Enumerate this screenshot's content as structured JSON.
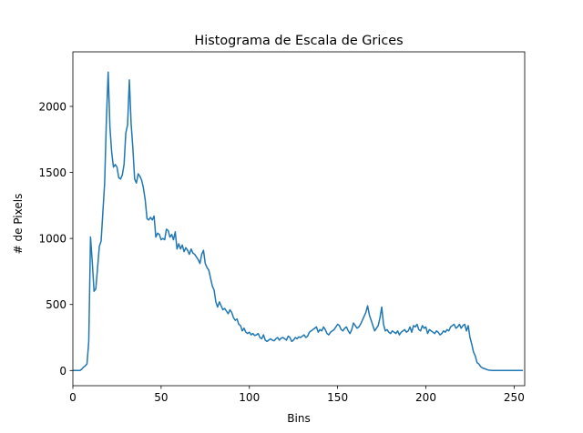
{
  "chart_data": {
    "type": "line",
    "title": "Histograma de Escala de Grices",
    "xlabel": "Bins",
    "ylabel": "# de Pixels",
    "xlim": [
      0,
      256
    ],
    "ylim": [
      -115,
      2413
    ],
    "xticks": [
      0,
      50,
      100,
      150,
      200,
      250
    ],
    "yticks": [
      0,
      500,
      1000,
      1500,
      2000
    ],
    "grid": false,
    "legend": "none",
    "series": [
      {
        "color": "#1f77b4",
        "points": [
          [
            0,
            0
          ],
          [
            1,
            0
          ],
          [
            2,
            0
          ],
          [
            3,
            0
          ],
          [
            4,
            0
          ],
          [
            5,
            10
          ],
          [
            6,
            25
          ],
          [
            7,
            35
          ],
          [
            8,
            50
          ],
          [
            9,
            220
          ],
          [
            10,
            1010
          ],
          [
            11,
            820
          ],
          [
            12,
            600
          ],
          [
            13,
            620
          ],
          [
            14,
            780
          ],
          [
            15,
            940
          ],
          [
            16,
            980
          ],
          [
            17,
            1200
          ],
          [
            18,
            1420
          ],
          [
            19,
            1900
          ],
          [
            20,
            2260
          ],
          [
            21,
            1840
          ],
          [
            22,
            1650
          ],
          [
            23,
            1540
          ],
          [
            24,
            1560
          ],
          [
            25,
            1540
          ],
          [
            26,
            1460
          ],
          [
            27,
            1450
          ],
          [
            28,
            1480
          ],
          [
            29,
            1560
          ],
          [
            30,
            1800
          ],
          [
            31,
            1860
          ],
          [
            32,
            2200
          ],
          [
            33,
            1870
          ],
          [
            34,
            1680
          ],
          [
            35,
            1450
          ],
          [
            36,
            1420
          ],
          [
            37,
            1490
          ],
          [
            38,
            1470
          ],
          [
            39,
            1440
          ],
          [
            40,
            1380
          ],
          [
            41,
            1290
          ],
          [
            42,
            1150
          ],
          [
            43,
            1140
          ],
          [
            44,
            1160
          ],
          [
            45,
            1140
          ],
          [
            46,
            1170
          ],
          [
            47,
            1010
          ],
          [
            48,
            1040
          ],
          [
            49,
            1030
          ],
          [
            50,
            990
          ],
          [
            51,
            1000
          ],
          [
            52,
            990
          ],
          [
            53,
            1070
          ],
          [
            54,
            1060
          ],
          [
            55,
            1010
          ],
          [
            56,
            1030
          ],
          [
            57,
            990
          ],
          [
            58,
            1050
          ],
          [
            59,
            920
          ],
          [
            60,
            960
          ],
          [
            61,
            920
          ],
          [
            62,
            950
          ],
          [
            63,
            900
          ],
          [
            64,
            930
          ],
          [
            65,
            910
          ],
          [
            66,
            880
          ],
          [
            67,
            920
          ],
          [
            68,
            890
          ],
          [
            69,
            880
          ],
          [
            70,
            860
          ],
          [
            71,
            840
          ],
          [
            72,
            810
          ],
          [
            73,
            880
          ],
          [
            74,
            910
          ],
          [
            75,
            810
          ],
          [
            76,
            780
          ],
          [
            77,
            760
          ],
          [
            78,
            700
          ],
          [
            79,
            640
          ],
          [
            80,
            610
          ],
          [
            81,
            520
          ],
          [
            82,
            480
          ],
          [
            83,
            520
          ],
          [
            84,
            490
          ],
          [
            85,
            460
          ],
          [
            86,
            470
          ],
          [
            87,
            450
          ],
          [
            88,
            430
          ],
          [
            89,
            460
          ],
          [
            90,
            440
          ],
          [
            91,
            400
          ],
          [
            92,
            380
          ],
          [
            93,
            390
          ],
          [
            94,
            350
          ],
          [
            95,
            340
          ],
          [
            96,
            300
          ],
          [
            97,
            320
          ],
          [
            98,
            290
          ],
          [
            99,
            280
          ],
          [
            100,
            290
          ],
          [
            101,
            270
          ],
          [
            102,
            280
          ],
          [
            103,
            265
          ],
          [
            104,
            270
          ],
          [
            105,
            280
          ],
          [
            106,
            250
          ],
          [
            107,
            240
          ],
          [
            108,
            270
          ],
          [
            109,
            230
          ],
          [
            110,
            220
          ],
          [
            111,
            230
          ],
          [
            112,
            240
          ],
          [
            113,
            230
          ],
          [
            114,
            225
          ],
          [
            115,
            240
          ],
          [
            116,
            250
          ],
          [
            117,
            230
          ],
          [
            118,
            245
          ],
          [
            119,
            250
          ],
          [
            120,
            240
          ],
          [
            121,
            230
          ],
          [
            122,
            260
          ],
          [
            123,
            250
          ],
          [
            124,
            220
          ],
          [
            125,
            230
          ],
          [
            126,
            250
          ],
          [
            127,
            240
          ],
          [
            128,
            255
          ],
          [
            129,
            250
          ],
          [
            130,
            260
          ],
          [
            131,
            270
          ],
          [
            132,
            250
          ],
          [
            133,
            260
          ],
          [
            134,
            290
          ],
          [
            135,
            300
          ],
          [
            136,
            310
          ],
          [
            137,
            320
          ],
          [
            138,
            330
          ],
          [
            139,
            290
          ],
          [
            140,
            310
          ],
          [
            141,
            300
          ],
          [
            142,
            330
          ],
          [
            143,
            310
          ],
          [
            144,
            280
          ],
          [
            145,
            270
          ],
          [
            146,
            290
          ],
          [
            147,
            300
          ],
          [
            148,
            310
          ],
          [
            149,
            330
          ],
          [
            150,
            350
          ],
          [
            151,
            340
          ],
          [
            152,
            310
          ],
          [
            153,
            300
          ],
          [
            154,
            320
          ],
          [
            155,
            330
          ],
          [
            156,
            300
          ],
          [
            157,
            280
          ],
          [
            158,
            310
          ],
          [
            159,
            360
          ],
          [
            160,
            340
          ],
          [
            161,
            320
          ],
          [
            162,
            330
          ],
          [
            163,
            350
          ],
          [
            164,
            380
          ],
          [
            165,
            410
          ],
          [
            166,
            440
          ],
          [
            167,
            490
          ],
          [
            168,
            420
          ],
          [
            169,
            380
          ],
          [
            170,
            340
          ],
          [
            171,
            300
          ],
          [
            172,
            320
          ],
          [
            173,
            340
          ],
          [
            174,
            400
          ],
          [
            175,
            480
          ],
          [
            176,
            350
          ],
          [
            177,
            300
          ],
          [
            178,
            310
          ],
          [
            179,
            290
          ],
          [
            180,
            280
          ],
          [
            181,
            300
          ],
          [
            182,
            290
          ],
          [
            183,
            280
          ],
          [
            184,
            300
          ],
          [
            185,
            270
          ],
          [
            186,
            290
          ],
          [
            187,
            300
          ],
          [
            188,
            310
          ],
          [
            189,
            290
          ],
          [
            190,
            300
          ],
          [
            191,
            330
          ],
          [
            192,
            290
          ],
          [
            193,
            340
          ],
          [
            194,
            330
          ],
          [
            195,
            350
          ],
          [
            196,
            310
          ],
          [
            197,
            300
          ],
          [
            198,
            340
          ],
          [
            199,
            320
          ],
          [
            200,
            330
          ],
          [
            201,
            280
          ],
          [
            202,
            310
          ],
          [
            203,
            300
          ],
          [
            204,
            290
          ],
          [
            205,
            280
          ],
          [
            206,
            300
          ],
          [
            207,
            290
          ],
          [
            208,
            270
          ],
          [
            209,
            280
          ],
          [
            210,
            300
          ],
          [
            211,
            290
          ],
          [
            212,
            310
          ],
          [
            213,
            300
          ],
          [
            214,
            330
          ],
          [
            215,
            340
          ],
          [
            216,
            350
          ],
          [
            217,
            320
          ],
          [
            218,
            330
          ],
          [
            219,
            350
          ],
          [
            220,
            320
          ],
          [
            221,
            340
          ],
          [
            222,
            350
          ],
          [
            223,
            300
          ],
          [
            224,
            340
          ],
          [
            225,
            250
          ],
          [
            226,
            200
          ],
          [
            227,
            140
          ],
          [
            228,
            110
          ],
          [
            229,
            60
          ],
          [
            230,
            50
          ],
          [
            231,
            30
          ],
          [
            232,
            20
          ],
          [
            233,
            15
          ],
          [
            234,
            10
          ],
          [
            235,
            5
          ],
          [
            236,
            2
          ],
          [
            237,
            1
          ],
          [
            238,
            0
          ],
          [
            239,
            0
          ],
          [
            240,
            0
          ],
          [
            241,
            0
          ],
          [
            242,
            0
          ],
          [
            243,
            0
          ],
          [
            244,
            0
          ],
          [
            245,
            0
          ],
          [
            246,
            0
          ],
          [
            247,
            0
          ],
          [
            248,
            0
          ],
          [
            249,
            0
          ],
          [
            250,
            0
          ],
          [
            251,
            0
          ],
          [
            252,
            0
          ],
          [
            253,
            0
          ],
          [
            254,
            0
          ],
          [
            255,
            0
          ]
        ]
      }
    ]
  }
}
